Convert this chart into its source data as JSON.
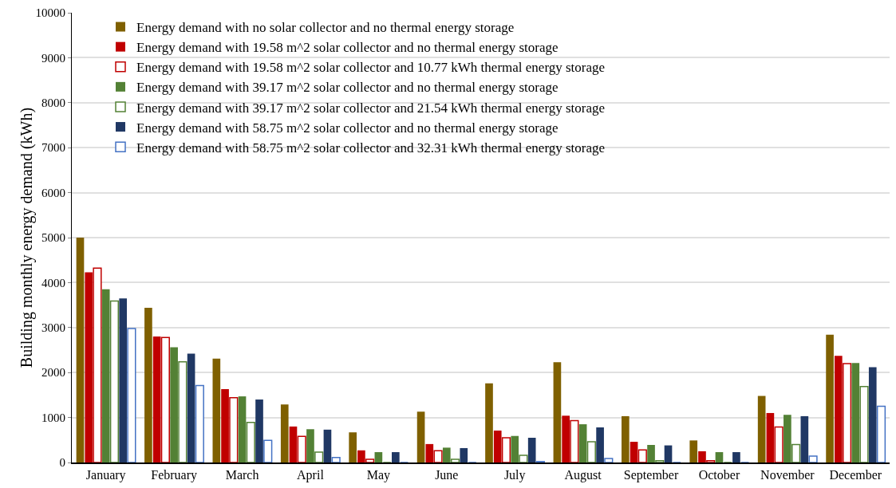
{
  "chart_data": {
    "type": "bar",
    "ylabel": "Building monthly energy demand (kWh)",
    "categories": [
      "January",
      "February",
      "March",
      "April",
      "May",
      "June",
      "July",
      "August",
      "September",
      "October",
      "November",
      "December"
    ],
    "series": [
      {
        "name": "Energy demand with no solar collector and no thermal energy storage",
        "color": "#7f6000",
        "values": [
          5000,
          3440,
          2310,
          1290,
          670,
          1130,
          1760,
          2230,
          1030,
          490,
          1480,
          2840
        ]
      },
      {
        "name": "Energy demand with 19.58 m^2 solar collector and no thermal energy storage",
        "color": "#c00000",
        "values": [
          4230,
          2800,
          1630,
          800,
          270,
          410,
          710,
          1040,
          460,
          250,
          1100,
          2370
        ]
      },
      {
        "name": "Energy demand with 19.58 m^2 solar collector and 10.77 kWh thermal energy storage",
        "color": "#c00000",
        "values": [
          4320,
          2780,
          1440,
          580,
          70,
          260,
          550,
          930,
          280,
          40,
          790,
          2200
        ]
      },
      {
        "name": "Energy demand with 39.17 m^2 solar collector and no thermal energy storage",
        "color": "#538135",
        "values": [
          3850,
          2560,
          1470,
          740,
          230,
          330,
          590,
          850,
          390,
          230,
          1060,
          2210
        ]
      },
      {
        "name": "Energy demand with 39.17 m^2 solar collector and 21.54 kWh thermal energy storage",
        "color": "#538135",
        "values": [
          3590,
          2240,
          890,
          230,
          0,
          70,
          160,
          460,
          40,
          0,
          400,
          1690
        ]
      },
      {
        "name": "Energy demand with 58.75 m^2 solar collector and no thermal energy storage",
        "color": "#203864",
        "values": [
          3650,
          2420,
          1400,
          730,
          230,
          320,
          550,
          780,
          380,
          230,
          1030,
          2120
        ]
      },
      {
        "name": "Energy demand with 58.75 m^2 solar collector and 32.31 kWh thermal energy storage",
        "color": "#4472c4",
        "values": [
          2980,
          1710,
          490,
          110,
          0,
          0,
          20,
          90,
          0,
          0,
          140,
          1250
        ]
      }
    ],
    "ylim": [
      0,
      10000
    ],
    "yticks": [
      0,
      1000,
      2000,
      3000,
      4000,
      5000,
      6000,
      7000,
      8000,
      9000,
      10000
    ],
    "grid": "y",
    "legend": "top left"
  }
}
